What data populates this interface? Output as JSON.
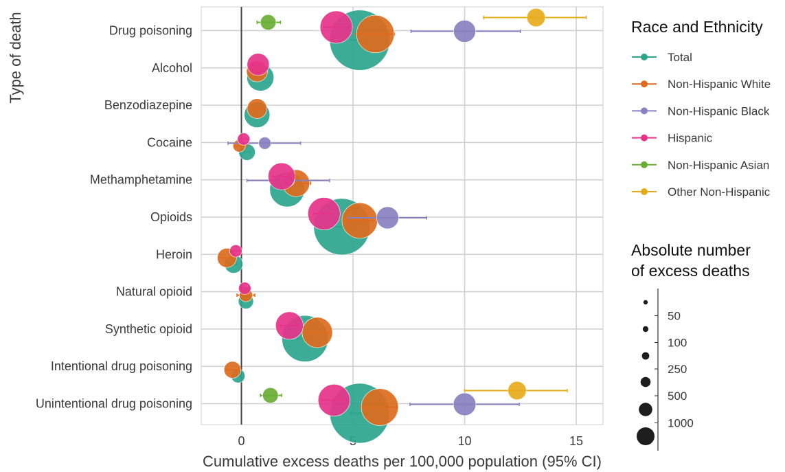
{
  "chart_data": {
    "type": "scatter",
    "subtype": "forest-plot-with-confidence-intervals",
    "xlabel": "Cumulative excess deaths per 100,000 population (95% CI)",
    "ylabel": "Type of death",
    "xlim": [
      -1.8,
      16.2
    ],
    "xticks": [
      0,
      5,
      10,
      15
    ],
    "grid": true,
    "reference_line_x": 0,
    "categories": [
      "Drug poisoning",
      "Alcohol",
      "Benzodiazepine",
      "Cocaine",
      "Methamphetamine",
      "Opioids",
      "Heroin",
      "Natural opioid",
      "Synthetic opioid",
      "Intentional drug poisoning",
      "Unintentional drug poisoning"
    ],
    "legend": {
      "title": "Race and Ethnicity",
      "placement": "right-top",
      "entries": [
        {
          "name": "Total",
          "color": "#2ca58d"
        },
        {
          "name": "Non-Hispanic White",
          "color": "#dd6b1d"
        },
        {
          "name": "Non-Hispanic Black",
          "color": "#8880c0"
        },
        {
          "name": "Hispanic",
          "color": "#e6338a"
        },
        {
          "name": "Non-Hispanic Asian",
          "color": "#6aaf35"
        },
        {
          "name": "Other Non-Hispanic",
          "color": "#e6ab1c"
        }
      ]
    },
    "size_legend": {
      "title_lines": [
        "Absolute number",
        "of excess deaths"
      ],
      "placement": "right-bottom",
      "values": [
        50,
        100,
        250,
        500,
        1000
      ]
    },
    "series": [
      {
        "name": "Total",
        "points": [
          {
            "category": "Drug poisoning",
            "x": 5.3,
            "lo": 4.9,
            "hi": 5.7,
            "deaths": 8000
          },
          {
            "category": "Alcohol",
            "x": 0.85,
            "lo": 0.7,
            "hi": 1.0,
            "deaths": 600
          },
          {
            "category": "Benzodiazepine",
            "x": 0.7,
            "lo": 0.55,
            "hi": 0.85,
            "deaths": 500
          },
          {
            "category": "Cocaine",
            "x": 0.25,
            "lo": 0.1,
            "hi": 0.4,
            "deaths": 100
          },
          {
            "category": "Methamphetamine",
            "x": 2.05,
            "lo": 1.85,
            "hi": 2.25,
            "deaths": 1400
          },
          {
            "category": "Opioids",
            "x": 4.5,
            "lo": 4.1,
            "hi": 4.9,
            "deaths": 6500
          },
          {
            "category": "Heroin",
            "x": -0.35,
            "lo": -0.5,
            "hi": -0.2,
            "deaths": 150
          },
          {
            "category": "Natural opioid",
            "x": 0.2,
            "lo": 0.05,
            "hi": 0.35,
            "deaths": 70
          },
          {
            "category": "Synthetic opioid",
            "x": 2.85,
            "lo": 2.5,
            "hi": 3.2,
            "deaths": 3500
          },
          {
            "category": "Intentional drug poisoning",
            "x": -0.15,
            "lo": -0.3,
            "hi": -0.05,
            "deaths": 50
          },
          {
            "category": "Unintentional drug poisoning",
            "x": 5.3,
            "lo": 4.9,
            "hi": 5.7,
            "deaths": 7800
          }
        ]
      },
      {
        "name": "Non-Hispanic White",
        "points": [
          {
            "category": "Drug poisoning",
            "x": 6.0,
            "lo": 5.1,
            "hi": 6.85,
            "deaths": 1800
          },
          {
            "category": "Alcohol",
            "x": 0.7,
            "lo": 0.3,
            "hi": 1.1,
            "deaths": 250
          },
          {
            "category": "Benzodiazepine",
            "x": 0.7,
            "lo": 0.45,
            "hi": 0.95,
            "deaths": 200
          },
          {
            "category": "Cocaine",
            "x": -0.1,
            "lo": -0.35,
            "hi": 0.25,
            "deaths": 30
          },
          {
            "category": "Methamphetamine",
            "x": 2.45,
            "lo": 1.85,
            "hi": 3.1,
            "deaths": 600
          },
          {
            "category": "Opioids",
            "x": 5.3,
            "lo": 4.7,
            "hi": 5.9,
            "deaths": 1500
          },
          {
            "category": "Heroin",
            "x": -0.65,
            "lo": -1.05,
            "hi": -0.25,
            "deaths": 180
          },
          {
            "category": "Natural opioid",
            "x": 0.2,
            "lo": -0.2,
            "hi": 0.6,
            "deaths": 40
          },
          {
            "category": "Synthetic opioid",
            "x": 3.4,
            "lo": 2.95,
            "hi": 3.95,
            "deaths": 900
          },
          {
            "category": "Intentional drug poisoning",
            "x": -0.4,
            "lo": -0.7,
            "hi": -0.1,
            "deaths": 110
          },
          {
            "category": "Unintentional drug poisoning",
            "x": 6.2,
            "lo": 5.35,
            "hi": 7.0,
            "deaths": 1700
          }
        ]
      },
      {
        "name": "Non-Hispanic Black",
        "points": [
          {
            "category": "Drug poisoning",
            "x": 10.0,
            "lo": 7.6,
            "hi": 12.5,
            "deaths": 300
          },
          {
            "category": "Cocaine",
            "x": 1.05,
            "lo": -0.6,
            "hi": 2.65,
            "deaths": 30
          },
          {
            "category": "Methamphetamine",
            "x": 2.1,
            "lo": 0.25,
            "hi": 3.95,
            "deaths": 30
          },
          {
            "category": "Opioids",
            "x": 6.55,
            "lo": 4.8,
            "hi": 8.3,
            "deaths": 300
          },
          {
            "category": "Unintentional drug poisoning",
            "x": 10.0,
            "lo": 7.55,
            "hi": 12.45,
            "deaths": 320
          }
        ]
      },
      {
        "name": "Hispanic",
        "points": [
          {
            "category": "Drug poisoning",
            "x": 4.25,
            "lo": 3.7,
            "hi": 4.8,
            "deaths": 1100
          },
          {
            "category": "Alcohol",
            "x": 0.75,
            "lo": 0.5,
            "hi": 1.0,
            "deaths": 300
          },
          {
            "category": "Cocaine",
            "x": 0.1,
            "lo": -0.15,
            "hi": 0.35,
            "deaths": 30
          },
          {
            "category": "Methamphetamine",
            "x": 1.8,
            "lo": 1.4,
            "hi": 2.2,
            "deaths": 600
          },
          {
            "category": "Opioids",
            "x": 3.7,
            "lo": 3.25,
            "hi": 4.1,
            "deaths": 1100
          },
          {
            "category": "Heroin",
            "x": -0.25,
            "lo": -0.5,
            "hi": 0.0,
            "deaths": 30
          },
          {
            "category": "Natural opioid",
            "x": 0.15,
            "lo": -0.05,
            "hi": 0.35,
            "deaths": 30
          },
          {
            "category": "Synthetic opioid",
            "x": 2.15,
            "lo": 1.75,
            "hi": 2.55,
            "deaths": 650
          },
          {
            "category": "Unintentional drug poisoning",
            "x": 4.15,
            "lo": 3.6,
            "hi": 4.7,
            "deaths": 1050
          }
        ]
      },
      {
        "name": "Non-Hispanic Asian",
        "points": [
          {
            "category": "Drug poisoning",
            "x": 1.2,
            "lo": 0.7,
            "hi": 1.75,
            "deaths": 80
          },
          {
            "category": "Unintentional drug poisoning",
            "x": 1.3,
            "lo": 0.85,
            "hi": 1.8,
            "deaths": 80
          }
        ]
      },
      {
        "name": "Other Non-Hispanic",
        "points": [
          {
            "category": "Drug poisoning",
            "x": 13.2,
            "lo": 10.85,
            "hi": 15.45,
            "deaths": 150
          },
          {
            "category": "Unintentional drug poisoning",
            "x": 12.35,
            "lo": 10.0,
            "hi": 14.6,
            "deaths": 150
          }
        ]
      }
    ]
  }
}
